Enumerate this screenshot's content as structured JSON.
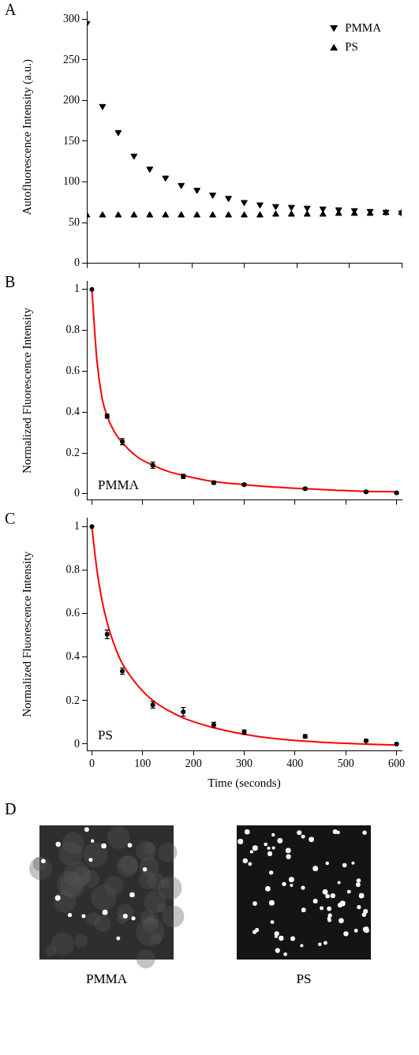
{
  "chart_data": [
    {
      "panel": "A",
      "type": "scatter",
      "y_label": "Autofluorescence Intensity (a.u.)",
      "xlim": [
        0,
        600
      ],
      "xticks": [
        0,
        100,
        200,
        300,
        400,
        500,
        600
      ],
      "ylim": [
        0,
        310
      ],
      "yticks": [
        0,
        50,
        100,
        150,
        200,
        250,
        300
      ],
      "grid": false,
      "tick_labels": "y",
      "legend": "upper right",
      "series": [
        {
          "name": "PMMA",
          "type": "scatter",
          "marker": "triangle-down",
          "color": "#000000",
          "x": [
            0,
            30,
            60,
            90,
            120,
            150,
            180,
            210,
            240,
            270,
            300,
            330,
            360,
            390,
            420,
            450,
            480,
            510,
            540,
            570,
            600
          ],
          "values": [
            295,
            193,
            161,
            132,
            116,
            105,
            96,
            90,
            84,
            80,
            75,
            72,
            70,
            69,
            68,
            67,
            66,
            65,
            64,
            63,
            62
          ]
        },
        {
          "name": "PS",
          "type": "scatter",
          "marker": "triangle-up",
          "color": "#000000",
          "x": [
            0,
            30,
            60,
            90,
            120,
            150,
            180,
            210,
            240,
            270,
            300,
            330,
            360,
            390,
            420,
            450,
            480,
            510,
            540,
            570,
            600
          ],
          "values": [
            59,
            59,
            59,
            59,
            59,
            59,
            59,
            59,
            59,
            59,
            59,
            59,
            60,
            60,
            60,
            60,
            61,
            61,
            61,
            62,
            62
          ]
        }
      ]
    },
    {
      "panel": "B",
      "type": "scatter",
      "annotation": "PMMA",
      "y_label": "Normalized Fluorescence Intensity",
      "xlim": [
        -10,
        610
      ],
      "xticks": [
        0,
        100,
        200,
        300,
        400,
        500,
        600
      ],
      "ylim": [
        -0.03,
        1.04
      ],
      "yticks": [
        0,
        0.2,
        0.4,
        0.6,
        0.8,
        1
      ],
      "grid": false,
      "tick_labels": "y",
      "series": [
        {
          "type": "scatter",
          "marker": "circle",
          "color": "#000000",
          "x": [
            0,
            30,
            60,
            120,
            180,
            240,
            300,
            420,
            540,
            600
          ],
          "values": [
            1.0,
            0.38,
            0.255,
            0.14,
            0.085,
            0.055,
            0.045,
            0.025,
            0.01,
            0.005
          ],
          "errors": [
            0,
            0.01,
            0.015,
            0.015,
            0.01,
            0.008,
            0.006,
            0.005,
            0.005,
            0.005
          ]
        },
        {
          "type": "line",
          "line_style": "solid",
          "color": "#ff0000",
          "x": [
            0,
            10,
            20,
            30,
            45,
            60,
            90,
            120,
            150,
            180,
            240,
            300,
            360,
            420,
            480,
            540,
            600
          ],
          "values": [
            1.0,
            0.65,
            0.47,
            0.38,
            0.3,
            0.25,
            0.18,
            0.14,
            0.11,
            0.09,
            0.06,
            0.045,
            0.033,
            0.025,
            0.018,
            0.012,
            0.01
          ]
        }
      ]
    },
    {
      "panel": "C",
      "type": "scatter",
      "annotation": "PS",
      "x_label": "Time (seconds)",
      "y_label": "Normalized Fluorescence Intensity",
      "xlim": [
        -10,
        610
      ],
      "xticks": [
        0,
        100,
        200,
        300,
        400,
        500,
        600
      ],
      "ylim": [
        -0.03,
        1.04
      ],
      "yticks": [
        0,
        0.2,
        0.4,
        0.6,
        0.8,
        1
      ],
      "grid": false,
      "series": [
        {
          "type": "scatter",
          "marker": "circle",
          "color": "#000000",
          "x": [
            0,
            30,
            60,
            120,
            180,
            240,
            300,
            420,
            540,
            600
          ],
          "values": [
            1.0,
            0.505,
            0.335,
            0.18,
            0.148,
            0.088,
            0.055,
            0.035,
            0.015,
            0.0
          ],
          "errors": [
            0,
            0.02,
            0.015,
            0.015,
            0.02,
            0.012,
            0.01,
            0.008,
            0.005,
            0
          ]
        },
        {
          "type": "line",
          "line_style": "solid",
          "color": "#ff0000",
          "x": [
            0,
            10,
            20,
            30,
            45,
            60,
            90,
            120,
            150,
            180,
            240,
            300,
            360,
            420,
            480,
            540,
            600
          ],
          "values": [
            1.0,
            0.8,
            0.66,
            0.56,
            0.45,
            0.37,
            0.27,
            0.2,
            0.155,
            0.12,
            0.075,
            0.045,
            0.025,
            0.013,
            0.005,
            0.0,
            -0.005
          ]
        }
      ]
    }
  ],
  "images": {
    "panel": "D",
    "captions": [
      "PMMA",
      "PS"
    ]
  }
}
